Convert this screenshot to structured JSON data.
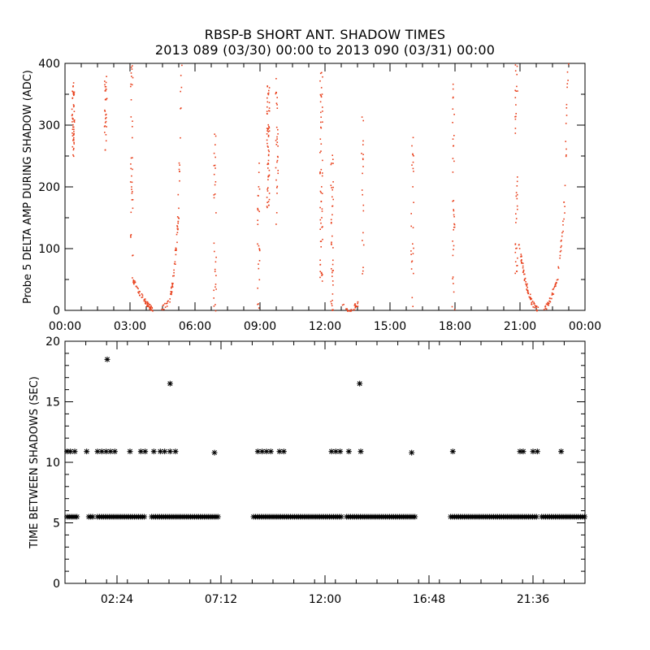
{
  "title_line1": "RBSP-B SHORT ANT. SHADOW TIMES",
  "title_line2": "2013 089 (03/30) 00:00 to 2013 090 (03/31) 00:00",
  "colors": {
    "top_points": "#e8401c",
    "bottom_points": "#000000",
    "axes": "#000000"
  },
  "chart_data": [
    {
      "type": "scatter",
      "ylabel": "Probe 5 DELTA AMP DURING SHADOW (ADC)",
      "xlabel": "",
      "xlim": [
        0,
        24
      ],
      "ylim": [
        0,
        400
      ],
      "x_unit": "hours",
      "xticks": [
        0,
        3,
        6,
        9,
        12,
        15,
        18,
        21,
        24
      ],
      "xtick_labels": [
        "00:00",
        "03:00",
        "06:00",
        "09:00",
        "12:00",
        "15:00",
        "18:00",
        "21:00",
        "00:00"
      ],
      "yticks": [
        0,
        100,
        200,
        300,
        400
      ],
      "ytick_labels": [
        "0",
        "100",
        "200",
        "300",
        "400"
      ],
      "marker_color": "#e8401c",
      "marker": "dot",
      "point_groups": [
        {
          "description": "vertical streak",
          "x": 0.35,
          "ymin": 250,
          "ymax": 370,
          "n": 50
        },
        {
          "description": "vertical streak",
          "x": 1.85,
          "ymin": 260,
          "ymax": 380,
          "n": 30
        },
        {
          "description": "vertical streak",
          "x": 3.05,
          "ymin": 80,
          "ymax": 400,
          "n": 35
        },
        {
          "description": "valley left",
          "x": [
            3.1,
            3.5,
            3.8,
            4.0
          ],
          "y": [
            50,
            25,
            10,
            2
          ],
          "n": 60
        },
        {
          "description": "valley right",
          "x": [
            4.4,
            4.8,
            5.0,
            5.2,
            5.35
          ],
          "y": [
            2,
            15,
            60,
            150,
            400
          ],
          "n": 70
        },
        {
          "description": "vertical streak",
          "x": 6.9,
          "ymin": 0,
          "ymax": 320,
          "n": 30
        },
        {
          "description": "vertical streak",
          "x": 8.9,
          "ymin": 0,
          "ymax": 250,
          "n": 25
        },
        {
          "description": "vertical streak",
          "x": 9.35,
          "ymin": 160,
          "ymax": 370,
          "n": 60
        },
        {
          "description": "vertical streak",
          "x": 9.75,
          "ymin": 140,
          "ymax": 390,
          "n": 30
        },
        {
          "description": "vertical streak",
          "x": 11.8,
          "ymin": 30,
          "ymax": 400,
          "n": 60
        },
        {
          "description": "vertical streak",
          "x": 12.3,
          "ymin": 0,
          "ymax": 260,
          "n": 40
        },
        {
          "description": "valley",
          "x": [
            12.8,
            13.1,
            13.3,
            13.5
          ],
          "y": [
            8,
            0,
            5,
            12
          ],
          "n": 30
        },
        {
          "description": "vertical streak",
          "x": 13.7,
          "ymin": 60,
          "ymax": 340,
          "n": 20
        },
        {
          "description": "vertical streak",
          "x": 16.0,
          "ymin": 0,
          "ymax": 310,
          "n": 25
        },
        {
          "description": "vertical streak",
          "x": 17.9,
          "ymin": 0,
          "ymax": 400,
          "n": 35
        },
        {
          "description": "vertical streak",
          "x": 20.8,
          "ymin": 60,
          "ymax": 400,
          "n": 40
        },
        {
          "description": "valley left",
          "x": [
            20.9,
            21.2,
            21.5,
            21.8
          ],
          "y": [
            110,
            50,
            15,
            2
          ],
          "n": 70
        },
        {
          "description": "valley right",
          "x": [
            22.1,
            22.4,
            22.7,
            23.0,
            23.2
          ],
          "y": [
            2,
            20,
            50,
            150,
            400
          ],
          "n": 70
        }
      ]
    },
    {
      "type": "scatter",
      "ylabel": "TIME BETWEEN SHADOWS (SEC)",
      "xlabel": "",
      "xlim": [
        0,
        24
      ],
      "ylim": [
        0,
        20
      ],
      "x_unit": "hours",
      "xticks": [
        2.4,
        7.2,
        12.0,
        16.8,
        21.6
      ],
      "xtick_labels": [
        "02:24",
        "07:12",
        "12:00",
        "16:48",
        "21:36"
      ],
      "yticks": [
        0,
        5,
        10,
        15,
        20
      ],
      "ytick_labels": [
        "0",
        "5",
        "10",
        "15",
        "20"
      ],
      "marker_color": "#000000",
      "marker": "asterisk",
      "baseline_value": 5.5,
      "baseline_ranges": [
        [
          0.1,
          0.6
        ],
        [
          1.1,
          1.3
        ],
        [
          1.5,
          3.7
        ],
        [
          4.0,
          7.1
        ],
        [
          8.7,
          12.8
        ],
        [
          13.0,
          16.2
        ],
        [
          17.8,
          21.8
        ],
        [
          22.0,
          24.0
        ]
      ],
      "points": [
        [
          0.1,
          10.9
        ],
        [
          0.25,
          10.9
        ],
        [
          0.45,
          10.9
        ],
        [
          1.0,
          10.9
        ],
        [
          1.5,
          10.9
        ],
        [
          1.7,
          10.9
        ],
        [
          1.9,
          10.9
        ],
        [
          2.1,
          10.9
        ],
        [
          2.3,
          10.9
        ],
        [
          3.0,
          10.9
        ],
        [
          3.5,
          10.9
        ],
        [
          3.7,
          10.9
        ],
        [
          4.1,
          10.9
        ],
        [
          4.4,
          10.9
        ],
        [
          4.6,
          10.9
        ],
        [
          4.85,
          10.9
        ],
        [
          5.1,
          10.9
        ],
        [
          6.9,
          10.8
        ],
        [
          8.9,
          10.9
        ],
        [
          9.1,
          10.9
        ],
        [
          9.3,
          10.9
        ],
        [
          9.5,
          10.9
        ],
        [
          9.9,
          10.9
        ],
        [
          10.1,
          10.9
        ],
        [
          12.3,
          10.9
        ],
        [
          12.5,
          10.9
        ],
        [
          12.7,
          10.9
        ],
        [
          13.1,
          10.9
        ],
        [
          13.65,
          10.9
        ],
        [
          16.0,
          10.8
        ],
        [
          17.9,
          10.9
        ],
        [
          21.0,
          10.9
        ],
        [
          21.15,
          10.9
        ],
        [
          21.6,
          10.9
        ],
        [
          21.8,
          10.9
        ],
        [
          22.9,
          10.9
        ],
        [
          1.95,
          18.5
        ],
        [
          4.85,
          16.5
        ],
        [
          13.6,
          16.5
        ]
      ]
    }
  ]
}
